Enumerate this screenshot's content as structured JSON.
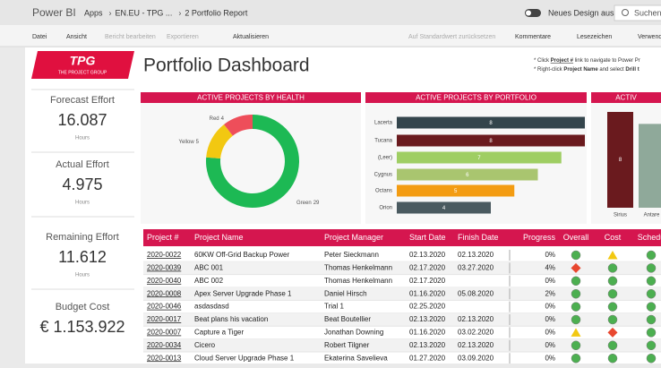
{
  "topbar": {
    "app": "Power BI",
    "breadcrumbs": [
      "Apps",
      "EN.EU - TPG ...",
      "2 Portfolio Report"
    ],
    "toggle": "Neues Design aus",
    "search": "Suchen"
  },
  "toolbar": {
    "left": [
      "Datei",
      "Ansicht",
      "Bericht bearbeiten",
      "Exportieren",
      "Aktualisieren"
    ],
    "right": [
      "Auf Standardwert zurücksetzen",
      "Kommentare",
      "Lesezeichen",
      "Verwende"
    ]
  },
  "logo": {
    "name": "TPG",
    "tagline": "THE PROJECT GROUP"
  },
  "title": "Portfolio Dashboard",
  "notes": [
    [
      {
        "text": "* Click "
      },
      {
        "text": "Project #",
        "bold": true
      },
      {
        "text": " link to navigate to Power Pr"
      }
    ],
    [
      {
        "text": "* Right-click "
      },
      {
        "text": "Project Name",
        "bold": true
      },
      {
        "text": " and select "
      },
      {
        "text": "Drill t",
        "bold": true
      }
    ]
  ],
  "kpis": [
    {
      "label": "Forecast Effort",
      "value": "16.087",
      "unit": "Hours"
    },
    {
      "label": "Actual Effort",
      "value": "4.975",
      "unit": "Hours"
    },
    {
      "label": "Remaining Effort",
      "value": "11.612",
      "unit": "Hours"
    },
    {
      "label": "Budget Cost",
      "value": "€ 1.153.922"
    }
  ],
  "chart_data": [
    {
      "type": "pie",
      "title": "ACTIVE PROJECTS BY HEALTH",
      "categories": [
        "Green",
        "Yellow",
        "Red"
      ],
      "values": [
        29,
        5,
        4
      ],
      "colors": [
        "#1db954",
        "#f2c811",
        "#ee4e5a"
      ]
    },
    {
      "type": "hbar",
      "title": "ACTIVE PROJECTS BY PORTFOLIO",
      "categories": [
        "Lacerta",
        "Tucana",
        "(Leer)",
        "Cygnus",
        "Octans",
        "Orion"
      ],
      "values": [
        8,
        8,
        7,
        6,
        5,
        4
      ],
      "colors": [
        "#34454c",
        "#6a1a1e",
        "#9fce63",
        "#a9c56f",
        "#f39c12",
        "#4a5a60"
      ],
      "xlim": [
        0,
        8
      ]
    },
    {
      "type": "vbar",
      "title": "ACTIV",
      "categories": [
        "Sirius",
        "Antare"
      ],
      "values": [
        8,
        7
      ],
      "value_labels": [
        "8",
        null
      ],
      "colors": [
        "#6a1a1e",
        "#8fa99a"
      ],
      "ylim": [
        0,
        8
      ]
    }
  ],
  "table": {
    "columns": [
      "Project #",
      "Project Name",
      "Project Manager",
      "Start Date",
      "Finish Date",
      "Progress",
      "Overall",
      "Cost",
      "Schedu"
    ],
    "rows": [
      [
        "2020-0022",
        "60KW Off-Grid Backup Power",
        "Peter Sieckmann",
        "02.13.2020",
        "02.13.2020",
        "0%",
        "green",
        "yellow",
        "green"
      ],
      [
        "2020-0039",
        "ABC 001",
        "Thomas Henkelmann",
        "02.17.2020",
        "03.27.2020",
        "4%",
        "red",
        "green",
        "green"
      ],
      [
        "2020-0040",
        "ABC 002",
        "Thomas Henkelmann",
        "02.17.2020",
        null,
        "0%",
        "green",
        "green",
        "green"
      ],
      [
        "2020-0008",
        "Apex Server Upgrade Phase 1",
        "Daniel Hirsch",
        "01.16.2020",
        "05.08.2020",
        "2%",
        "green",
        "green",
        "green"
      ],
      [
        "2020-0046",
        "asdasdasd",
        "Trial 1",
        "02.25.2020",
        null,
        "0%",
        "green",
        "green",
        "green"
      ],
      [
        "2020-0017",
        "Beat plans his vacation",
        "Beat Boutellier",
        "02.13.2020",
        "02.13.2020",
        "0%",
        "green",
        "green",
        "green"
      ],
      [
        "2020-0007",
        "Capture a Tiger",
        "Jonathan Downing",
        "01.16.2020",
        "03.02.2020",
        "0%",
        "yellow",
        "red",
        "green"
      ],
      [
        "2020-0034",
        "Cicero",
        "Robert Tilgner",
        "02.13.2020",
        "02.13.2020",
        "0%",
        "green",
        "green",
        "green"
      ],
      [
        "2020-0013",
        "Cloud Server Upgrade Phase 1",
        "Ekaterina Savelieva",
        "01.27.2020",
        "03.09.2020",
        "0%",
        "green",
        "green",
        "green"
      ]
    ]
  }
}
